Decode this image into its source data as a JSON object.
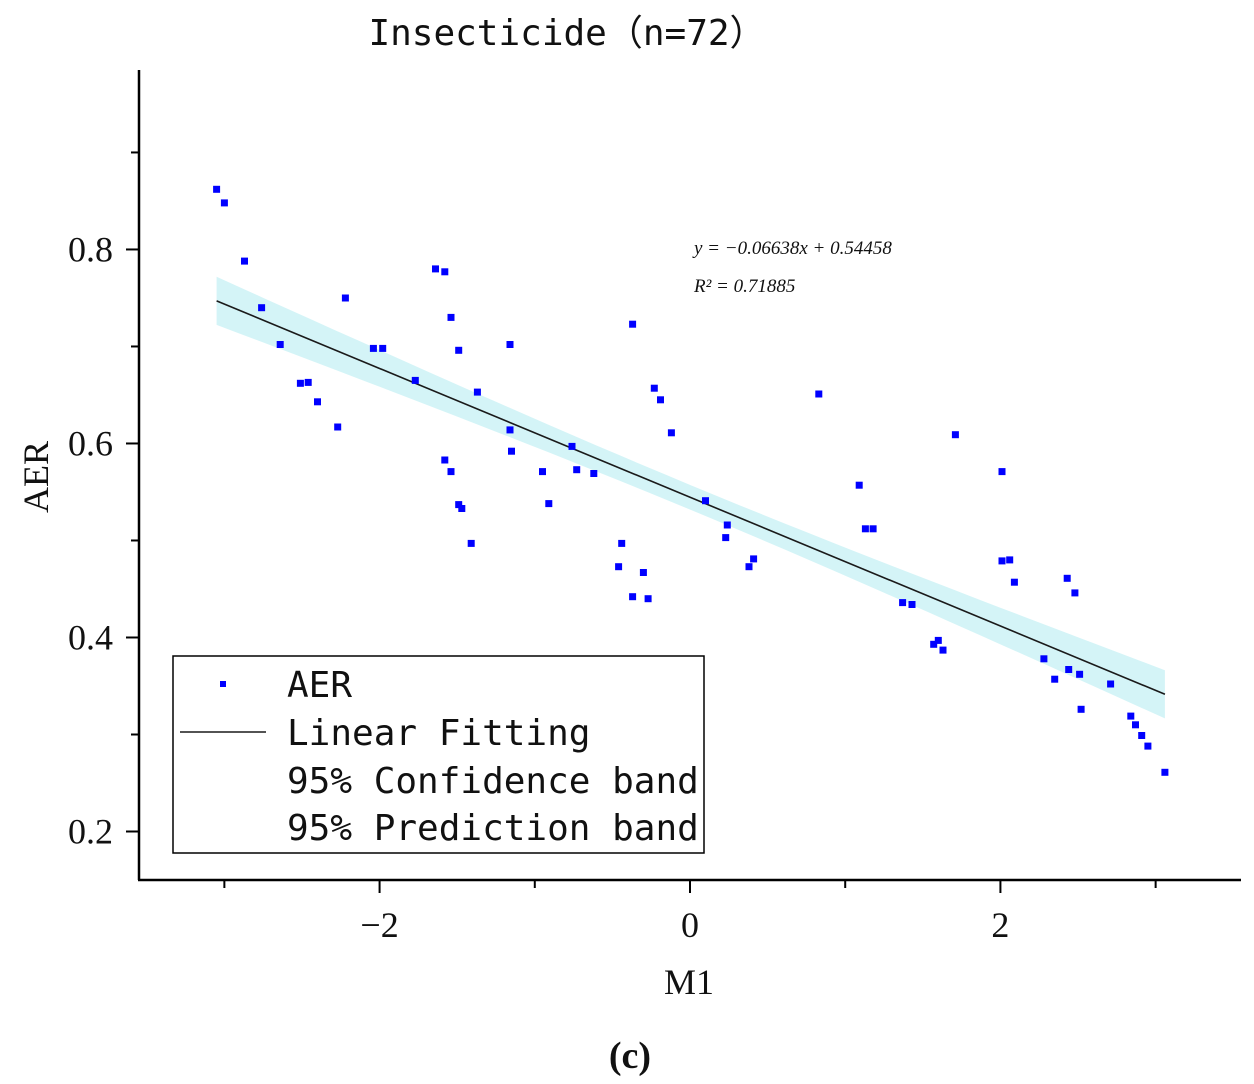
{
  "chart_data": {
    "type": "scatter",
    "title": "Insecticide（n=72）",
    "xlabel": "M1",
    "ylabel": "AER",
    "caption": "(c)",
    "xlim": [
      -3.55,
      3.55
    ],
    "ylim": [
      0.15,
      0.985
    ],
    "xticks": [
      -2,
      0,
      2
    ],
    "xtick_labels": [
      "−2",
      "0",
      "2"
    ],
    "yticks": [
      0.2,
      0.4,
      0.6,
      0.8
    ],
    "ytick_labels": [
      "0.2",
      "0.4",
      "0.6",
      "0.8"
    ],
    "fit": {
      "slope": -0.06638,
      "intercept": 0.54458,
      "x_range": [
        -3.05,
        3.06
      ]
    },
    "equation_line1": "y = −0.06638x + 0.54458",
    "equation_line2": "R² = 0.71885",
    "legend": {
      "position": "bottom-left",
      "entries": [
        "AER",
        "Linear Fitting",
        "95% Confidence band",
        "95% Prediction band"
      ]
    },
    "colors": {
      "points": "#0000ff",
      "fit_line": "#1a1a1a",
      "band": "#b8ecf2",
      "axis": "#000000"
    },
    "series": [
      {
        "name": "AER",
        "points": [
          [
            -3.05,
            0.862
          ],
          [
            -3.0,
            0.848
          ],
          [
            -2.87,
            0.788
          ],
          [
            -2.76,
            0.74
          ],
          [
            -2.64,
            0.702
          ],
          [
            -2.51,
            0.662
          ],
          [
            -2.46,
            0.663
          ],
          [
            -2.4,
            0.643
          ],
          [
            -2.27,
            0.617
          ],
          [
            -2.22,
            0.75
          ],
          [
            -2.04,
            0.698
          ],
          [
            -1.98,
            0.698
          ],
          [
            -1.77,
            0.665
          ],
          [
            -1.64,
            0.78
          ],
          [
            -1.58,
            0.777
          ],
          [
            -1.54,
            0.73
          ],
          [
            -1.49,
            0.696
          ],
          [
            -1.58,
            0.583
          ],
          [
            -1.54,
            0.571
          ],
          [
            -1.49,
            0.537
          ],
          [
            -1.47,
            0.533
          ],
          [
            -1.41,
            0.497
          ],
          [
            -1.37,
            0.653
          ],
          [
            -1.16,
            0.702
          ],
          [
            -1.16,
            0.614
          ],
          [
            -1.15,
            0.592
          ],
          [
            -0.95,
            0.571
          ],
          [
            -0.91,
            0.538
          ],
          [
            -0.76,
            0.597
          ],
          [
            -0.73,
            0.573
          ],
          [
            -0.62,
            0.569
          ],
          [
            -0.46,
            0.473
          ],
          [
            -0.44,
            0.497
          ],
          [
            -0.37,
            0.723
          ],
          [
            -0.37,
            0.442
          ],
          [
            -0.3,
            0.467
          ],
          [
            -0.27,
            0.44
          ],
          [
            -0.23,
            0.657
          ],
          [
            -0.19,
            0.645
          ],
          [
            -0.12,
            0.611
          ],
          [
            0.1,
            0.541
          ],
          [
            0.23,
            0.503
          ],
          [
            0.24,
            0.516
          ],
          [
            0.38,
            0.473
          ],
          [
            0.41,
            0.481
          ],
          [
            0.83,
            0.651
          ],
          [
            1.09,
            0.557
          ],
          [
            1.13,
            0.512
          ],
          [
            1.18,
            0.512
          ],
          [
            1.37,
            0.436
          ],
          [
            1.43,
            0.434
          ],
          [
            1.57,
            0.393
          ],
          [
            1.6,
            0.397
          ],
          [
            1.63,
            0.387
          ],
          [
            1.71,
            0.609
          ],
          [
            2.01,
            0.571
          ],
          [
            2.01,
            0.479
          ],
          [
            2.06,
            0.48
          ],
          [
            2.09,
            0.457
          ],
          [
            2.28,
            0.378
          ],
          [
            2.35,
            0.357
          ],
          [
            2.43,
            0.461
          ],
          [
            2.44,
            0.367
          ],
          [
            2.48,
            0.446
          ],
          [
            2.51,
            0.362
          ],
          [
            2.52,
            0.326
          ],
          [
            2.71,
            0.352
          ],
          [
            2.84,
            0.319
          ],
          [
            2.87,
            0.31
          ],
          [
            2.91,
            0.299
          ],
          [
            2.95,
            0.288
          ],
          [
            3.06,
            0.261
          ]
        ]
      }
    ]
  }
}
